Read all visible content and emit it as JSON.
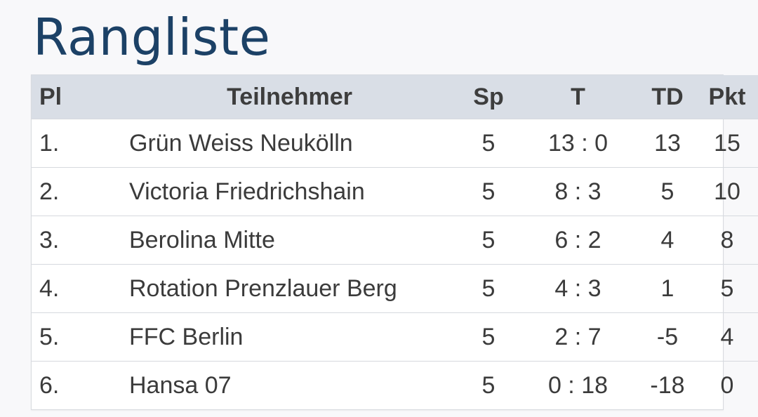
{
  "page": {
    "title": "Rangliste"
  },
  "table": {
    "headers": {
      "pl": "Pl",
      "name": "Teilnehmer",
      "sp": "Sp",
      "t": "T",
      "td": "TD",
      "pkt": "Pkt"
    },
    "rows": [
      {
        "pl": "1.",
        "name": "Grün Weiss Neukölln",
        "sp": "5",
        "t": "13 : 0",
        "td": "13",
        "pkt": "15"
      },
      {
        "pl": "2.",
        "name": "Victoria Friedrichshain",
        "sp": "5",
        "t": "8 : 3",
        "td": "5",
        "pkt": "10"
      },
      {
        "pl": "3.",
        "name": "Berolina Mitte",
        "sp": "5",
        "t": "6 : 2",
        "td": "4",
        "pkt": "8"
      },
      {
        "pl": "4.",
        "name": "Rotation Prenzlauer Berg",
        "sp": "5",
        "t": "4 : 3",
        "td": "1",
        "pkt": "5"
      },
      {
        "pl": "5.",
        "name": "FFC Berlin",
        "sp": "5",
        "t": "2 : 7",
        "td": "-5",
        "pkt": "4"
      },
      {
        "pl": "6.",
        "name": "Hansa 07",
        "sp": "5",
        "t": "0 : 18",
        "td": "-18",
        "pkt": "0"
      }
    ]
  },
  "colors": {
    "title": "#1c4166",
    "header_bg": "#d9dee6",
    "row_border": "#d6d9de",
    "page_bg": "#f8f8fa"
  }
}
